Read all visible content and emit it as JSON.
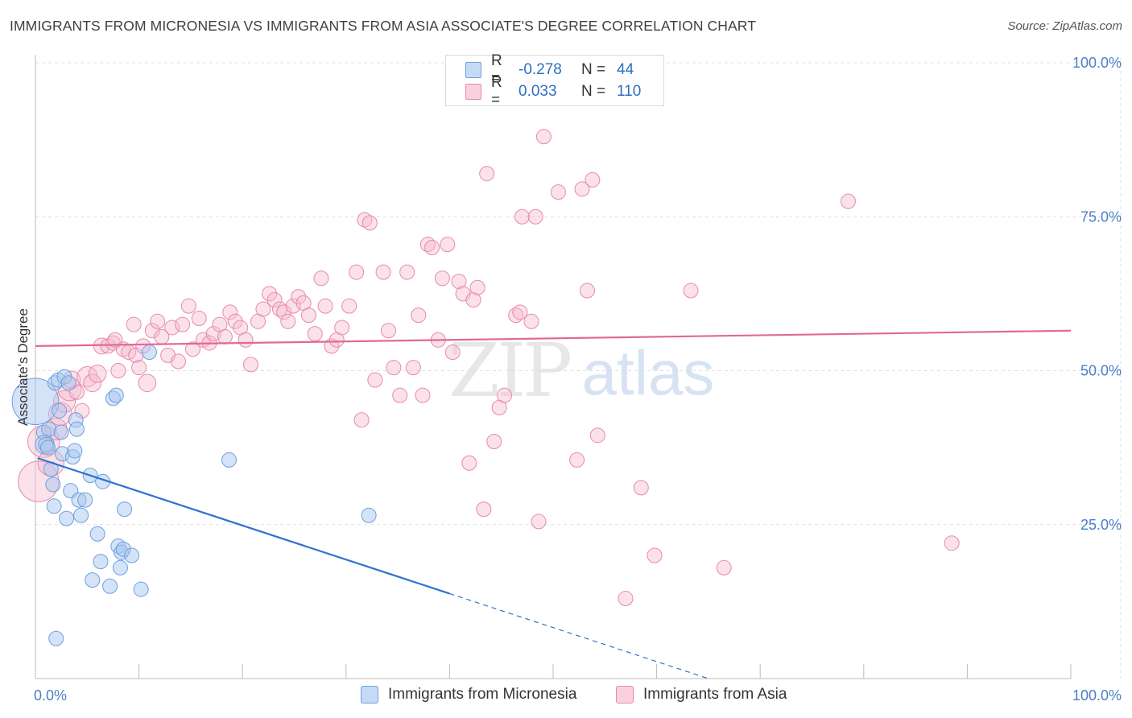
{
  "title": "IMMIGRANTS FROM MICRONESIA VS IMMIGRANTS FROM ASIA ASSOCIATE'S DEGREE CORRELATION CHART",
  "source": "Source: ZipAtlas.com",
  "watermark": {
    "zip": "ZIP",
    "atlas": "atlas"
  },
  "colors": {
    "micronesia_fill": "#a9c8f0",
    "micronesia_stroke": "#6f9fdc",
    "micronesia_line": "#2f72d0",
    "asia_fill": "#f7bdd0",
    "asia_stroke": "#e68aaa",
    "asia_line": "#e06a93",
    "tick_label": "#4a7fc8",
    "grid": "#e0e0e0"
  },
  "legend": {
    "rows": [
      {
        "r_label": "R =",
        "r_value": "-0.278",
        "n_label": "N =",
        "n_value": "44"
      },
      {
        "r_label": "R =",
        "r_value": "0.033",
        "n_label": "N =",
        "n_value": "110"
      }
    ]
  },
  "chart_data": {
    "type": "scatter",
    "title": "IMMIGRANTS FROM MICRONESIA VS IMMIGRANTS FROM ASIA ASSOCIATE'S DEGREE CORRELATION CHART",
    "xlabel": "",
    "ylabel": "Associate's Degree",
    "xlim": [
      0,
      100
    ],
    "ylim": [
      0,
      100
    ],
    "x_tick_labels": [
      "0.0%",
      "100.0%"
    ],
    "y_ticks": [
      25,
      50,
      75,
      100
    ],
    "y_tick_labels": [
      "25.0%",
      "50.0%",
      "75.0%",
      "100.0%"
    ],
    "grid": "horizontal dashed",
    "legend_position": "top-center",
    "series": [
      {
        "name": "Immigrants from Micronesia",
        "R": -0.278,
        "N": 44,
        "trend": {
          "x0": 0.2,
          "y0": 35.8,
          "x1": 40,
          "y1": 13.8,
          "dashed_to_x": 65,
          "dashed_to_y": 0
        },
        "points": [
          [
            0.0,
            45.0,
            3.2
          ],
          [
            0.8,
            40.0,
            1
          ],
          [
            0.9,
            38.0,
            1.3
          ],
          [
            1.0,
            38.0,
            1
          ],
          [
            1.2,
            37.5,
            1
          ],
          [
            1.3,
            40.5,
            1
          ],
          [
            1.5,
            34.0,
            1
          ],
          [
            1.7,
            31.5,
            1
          ],
          [
            1.8,
            28.0,
            1
          ],
          [
            1.9,
            48.0,
            1
          ],
          [
            2.0,
            6.5,
            1
          ],
          [
            2.2,
            48.5,
            1
          ],
          [
            2.3,
            43.5,
            1
          ],
          [
            2.5,
            40.0,
            1
          ],
          [
            2.6,
            36.5,
            1
          ],
          [
            2.8,
            49.0,
            1
          ],
          [
            3.0,
            26.0,
            1
          ],
          [
            3.2,
            48.0,
            1
          ],
          [
            3.4,
            30.5,
            1
          ],
          [
            3.6,
            36.0,
            1
          ],
          [
            3.8,
            37.0,
            1
          ],
          [
            3.9,
            42.0,
            1
          ],
          [
            4.0,
            40.5,
            1
          ],
          [
            4.2,
            29.0,
            1
          ],
          [
            4.4,
            26.5,
            1
          ],
          [
            4.8,
            29.0,
            1
          ],
          [
            5.3,
            33.0,
            1
          ],
          [
            5.5,
            16.0,
            1
          ],
          [
            6.0,
            23.5,
            1
          ],
          [
            6.3,
            19.0,
            1
          ],
          [
            6.5,
            32.0,
            1
          ],
          [
            7.2,
            15.0,
            1
          ],
          [
            7.5,
            45.5,
            1
          ],
          [
            7.8,
            46.0,
            1
          ],
          [
            8.0,
            21.5,
            1
          ],
          [
            8.2,
            18.0,
            1
          ],
          [
            8.3,
            20.5,
            1
          ],
          [
            8.5,
            21.0,
            1
          ],
          [
            8.6,
            27.5,
            1
          ],
          [
            9.3,
            20.0,
            1
          ],
          [
            10.2,
            14.5,
            1
          ],
          [
            11.0,
            53.0,
            1
          ],
          [
            18.7,
            35.5,
            1
          ],
          [
            32.2,
            26.5,
            1
          ]
        ]
      },
      {
        "name": "Immigrants from Asia",
        "R": 0.033,
        "N": 110,
        "trend": {
          "x0": 0,
          "y0": 54.0,
          "x1": 100,
          "y1": 56.5
        },
        "points": [
          [
            0.3,
            32.0,
            2.8
          ],
          [
            0.8,
            38.5,
            2.2
          ],
          [
            1.5,
            35.0,
            1.8
          ],
          [
            2.0,
            40.5,
            1.5
          ],
          [
            2.4,
            43.0,
            1.6
          ],
          [
            2.8,
            45.0,
            1.5
          ],
          [
            3.3,
            47.0,
            1.6
          ],
          [
            3.5,
            48.5,
            1.2
          ],
          [
            4.0,
            46.5,
            1
          ],
          [
            4.5,
            43.5,
            1
          ],
          [
            5.0,
            49.0,
            1.4
          ],
          [
            5.5,
            48.0,
            1.2
          ],
          [
            6.0,
            49.5,
            1.2
          ],
          [
            6.4,
            54.0,
            1.1
          ],
          [
            7.0,
            54.0,
            1
          ],
          [
            7.5,
            54.5,
            1
          ],
          [
            7.7,
            55.0,
            1
          ],
          [
            8.0,
            50.0,
            1
          ],
          [
            8.5,
            53.5,
            1
          ],
          [
            9.0,
            53.0,
            1
          ],
          [
            9.5,
            57.5,
            1
          ],
          [
            9.7,
            52.5,
            1
          ],
          [
            10.0,
            50.5,
            1
          ],
          [
            10.4,
            54.0,
            1
          ],
          [
            10.8,
            48.0,
            1.2
          ],
          [
            11.3,
            56.5,
            1
          ],
          [
            11.8,
            58.0,
            1
          ],
          [
            12.2,
            55.5,
            1
          ],
          [
            12.8,
            52.5,
            1
          ],
          [
            13.2,
            57.0,
            1
          ],
          [
            13.8,
            51.5,
            1
          ],
          [
            14.2,
            57.5,
            1
          ],
          [
            14.8,
            60.5,
            1
          ],
          [
            15.2,
            53.5,
            1
          ],
          [
            15.8,
            58.5,
            1
          ],
          [
            16.2,
            55.0,
            1
          ],
          [
            16.8,
            54.5,
            1
          ],
          [
            17.2,
            56.0,
            1
          ],
          [
            17.8,
            57.5,
            1
          ],
          [
            18.3,
            55.5,
            1
          ],
          [
            18.8,
            59.5,
            1
          ],
          [
            19.3,
            58.0,
            1
          ],
          [
            19.8,
            57.0,
            1
          ],
          [
            20.3,
            55.0,
            1
          ],
          [
            20.8,
            51.0,
            1
          ],
          [
            21.5,
            58.0,
            1
          ],
          [
            22.0,
            60.0,
            1
          ],
          [
            22.6,
            62.5,
            1
          ],
          [
            23.1,
            61.5,
            1
          ],
          [
            23.6,
            60.0,
            1
          ],
          [
            24.0,
            59.5,
            1
          ],
          [
            24.4,
            58.0,
            1
          ],
          [
            24.9,
            60.5,
            1
          ],
          [
            25.4,
            62.0,
            1
          ],
          [
            25.9,
            61.0,
            1
          ],
          [
            26.4,
            59.0,
            1
          ],
          [
            27.0,
            56.0,
            1
          ],
          [
            27.6,
            65.0,
            1
          ],
          [
            28.0,
            60.5,
            1
          ],
          [
            28.6,
            54.0,
            1
          ],
          [
            29.1,
            55.0,
            1
          ],
          [
            29.6,
            57.0,
            1
          ],
          [
            30.3,
            60.5,
            1
          ],
          [
            31.0,
            66.0,
            1
          ],
          [
            31.5,
            42.0,
            1
          ],
          [
            31.8,
            74.5,
            1
          ],
          [
            32.3,
            74.0,
            1
          ],
          [
            32.8,
            48.5,
            1
          ],
          [
            33.6,
            66.0,
            1
          ],
          [
            34.1,
            56.5,
            1
          ],
          [
            34.6,
            50.5,
            1
          ],
          [
            35.2,
            46.0,
            1
          ],
          [
            35.9,
            66.0,
            1
          ],
          [
            36.5,
            50.5,
            1
          ],
          [
            37.0,
            59.0,
            1
          ],
          [
            37.4,
            46.0,
            1
          ],
          [
            37.9,
            70.5,
            1
          ],
          [
            38.3,
            70.0,
            1
          ],
          [
            38.9,
            55.0,
            1
          ],
          [
            39.3,
            65.0,
            1
          ],
          [
            39.8,
            70.5,
            1
          ],
          [
            40.3,
            53.0,
            1
          ],
          [
            40.9,
            64.5,
            1
          ],
          [
            41.3,
            62.5,
            1
          ],
          [
            41.9,
            35.0,
            1
          ],
          [
            42.3,
            61.5,
            1
          ],
          [
            42.7,
            63.5,
            1
          ],
          [
            43.3,
            27.5,
            1
          ],
          [
            43.6,
            82.0,
            1
          ],
          [
            44.3,
            38.5,
            1
          ],
          [
            44.8,
            44.0,
            1
          ],
          [
            45.3,
            46.0,
            1
          ],
          [
            46.4,
            59.0,
            1
          ],
          [
            46.8,
            59.5,
            1
          ],
          [
            47.0,
            75.0,
            1
          ],
          [
            47.9,
            58.0,
            1
          ],
          [
            48.3,
            75.0,
            1
          ],
          [
            48.6,
            25.5,
            1
          ],
          [
            49.1,
            88.0,
            1
          ],
          [
            50.5,
            79.0,
            1
          ],
          [
            52.3,
            35.5,
            1
          ],
          [
            52.8,
            79.5,
            1
          ],
          [
            53.3,
            63.0,
            1
          ],
          [
            53.8,
            81.0,
            1
          ],
          [
            54.3,
            39.5,
            1
          ],
          [
            57.0,
            13.0,
            1
          ],
          [
            58.5,
            31.0,
            1
          ],
          [
            59.8,
            20.0,
            1
          ],
          [
            63.3,
            63.0,
            1
          ],
          [
            66.5,
            18.0,
            1
          ],
          [
            78.5,
            77.5,
            1
          ],
          [
            88.5,
            22.0,
            1
          ]
        ]
      }
    ]
  }
}
